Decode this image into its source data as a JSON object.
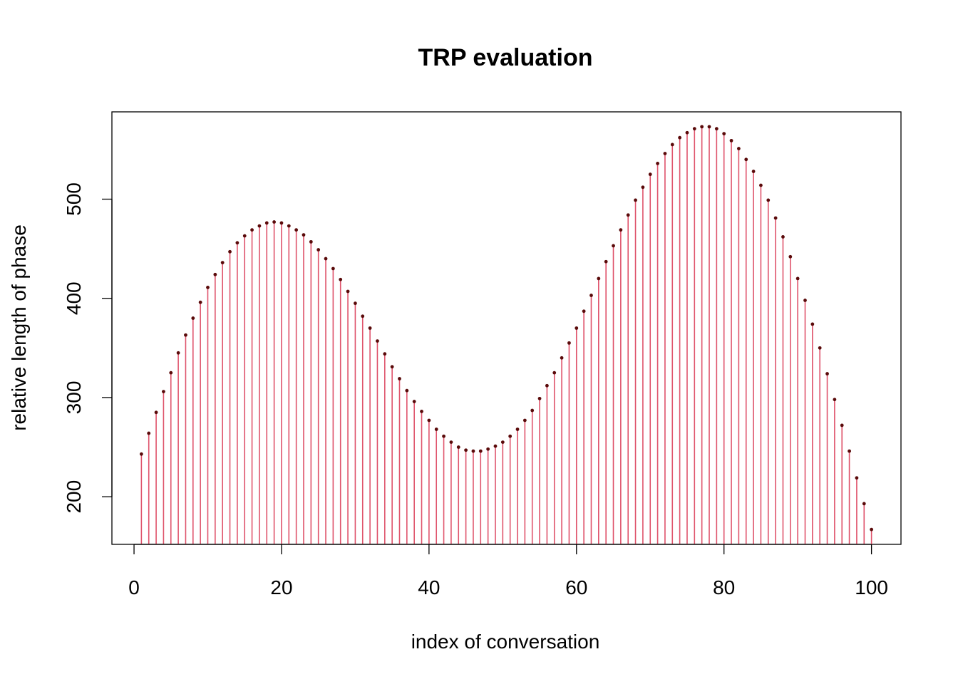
{
  "chart_data": {
    "type": "bar",
    "subtype": "stem",
    "title": "TRP evaluation",
    "xlabel": "index of conversation",
    "ylabel": "relative length of phase",
    "xlim": [
      -3,
      104
    ],
    "ylim": [
      152,
      588
    ],
    "x_ticks": [
      0,
      20,
      40,
      60,
      80,
      100
    ],
    "y_ticks": [
      200,
      300,
      400,
      500
    ],
    "grid": false,
    "legend": "none",
    "colors": {
      "stem": "#DF536B",
      "point": "#5A0A0A"
    },
    "x": [
      1,
      2,
      3,
      4,
      5,
      6,
      7,
      8,
      9,
      10,
      11,
      12,
      13,
      14,
      15,
      16,
      17,
      18,
      19,
      20,
      21,
      22,
      23,
      24,
      25,
      26,
      27,
      28,
      29,
      30,
      31,
      32,
      33,
      34,
      35,
      36,
      37,
      38,
      39,
      40,
      41,
      42,
      43,
      44,
      45,
      46,
      47,
      48,
      49,
      50,
      51,
      52,
      53,
      54,
      55,
      56,
      57,
      58,
      59,
      60,
      61,
      62,
      63,
      64,
      65,
      66,
      67,
      68,
      69,
      70,
      71,
      72,
      73,
      74,
      75,
      76,
      77,
      78,
      79,
      80,
      81,
      82,
      83,
      84,
      85,
      86,
      87,
      88,
      89,
      90,
      91,
      92,
      93,
      94,
      95,
      96,
      97,
      98,
      99,
      100
    ],
    "values": [
      243,
      264,
      285,
      306,
      325,
      345,
      363,
      380,
      396,
      411,
      424,
      436,
      447,
      456,
      463,
      469,
      473,
      476,
      477,
      476,
      473,
      469,
      464,
      457,
      449,
      440,
      430,
      419,
      407,
      395,
      382,
      370,
      357,
      344,
      331,
      319,
      307,
      296,
      286,
      277,
      268,
      261,
      255,
      250,
      247,
      246,
      246,
      248,
      251,
      255,
      261,
      268,
      277,
      287,
      299,
      312,
      325,
      340,
      355,
      370,
      387,
      403,
      420,
      437,
      453,
      469,
      484,
      499,
      512,
      525,
      536,
      546,
      555,
      562,
      567,
      571,
      573,
      573,
      571,
      566,
      559,
      551,
      540,
      528,
      514,
      499,
      481,
      462,
      442,
      420,
      398,
      374,
      350,
      324,
      298,
      272,
      246,
      219,
      193,
      167
    ]
  }
}
